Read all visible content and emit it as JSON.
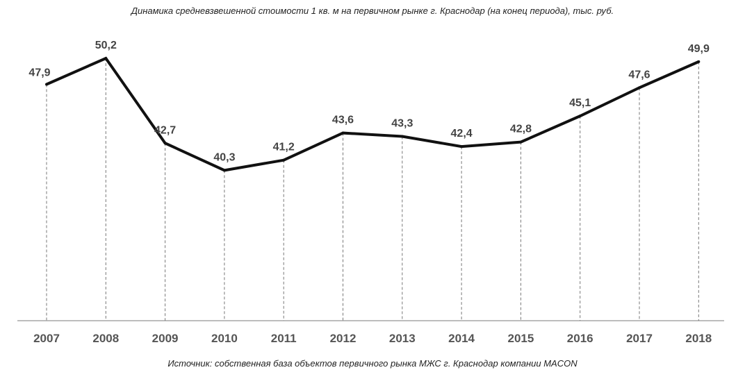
{
  "chart_data": {
    "type": "line",
    "title": "Динамика средневзвешенной стоимости 1 кв. м на первичном рынке г. Краснодар (на конец периода), тыс. руб.",
    "source": "Источник: собственная база объектов первичного рынка МЖС г. Краснодар компании MACON",
    "categories": [
      "2007",
      "2008",
      "2009",
      "2010",
      "2011",
      "2012",
      "2013",
      "2014",
      "2015",
      "2016",
      "2017",
      "2018"
    ],
    "values": [
      47.9,
      50.2,
      42.7,
      40.3,
      41.2,
      43.6,
      43.3,
      42.4,
      42.8,
      45.1,
      47.6,
      49.9
    ],
    "labels": [
      "47,9",
      "50,2",
      "42,7",
      "40,3",
      "41,2",
      "43,6",
      "43,3",
      "42,4",
      "42,8",
      "45,1",
      "47,6",
      "49,9"
    ],
    "ylim": [
      25,
      52
    ],
    "grid": false,
    "drop_lines": true,
    "line_color": "#111111"
  }
}
